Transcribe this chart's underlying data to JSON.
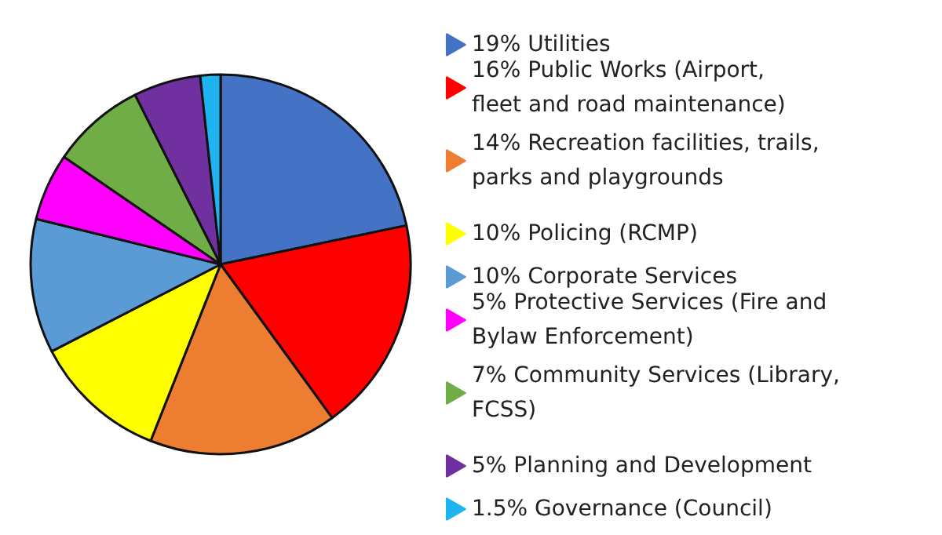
{
  "chart_data": {
    "type": "pie",
    "categories": [
      "Utilities",
      "Public Works (Airport,\nfleet and road maintenance)",
      "Recreation facilities, trails,\nparks and playgrounds",
      "Policing (RCMP)",
      "Corporate Services",
      "Protective Services (Fire and\nBylaw Enforcement)",
      "Community Services (Library,\nFCSS)",
      "Planning and Development",
      "Governance (Council)"
    ],
    "values": [
      19,
      16,
      14,
      10,
      10,
      5,
      7,
      5,
      1.5
    ],
    "value_labels": [
      "19%",
      "16%",
      "14%",
      "10%",
      "10%",
      "5%",
      "7%",
      "5%",
      "1.5%"
    ],
    "colors": [
      "#4472c4",
      "#ff0000",
      "#ed7d31",
      "#ffff00",
      "#5b9bd5",
      "#ff00ff",
      "#70ad47",
      "#7030a0",
      "#1fb4f0"
    ],
    "legend": "right"
  }
}
